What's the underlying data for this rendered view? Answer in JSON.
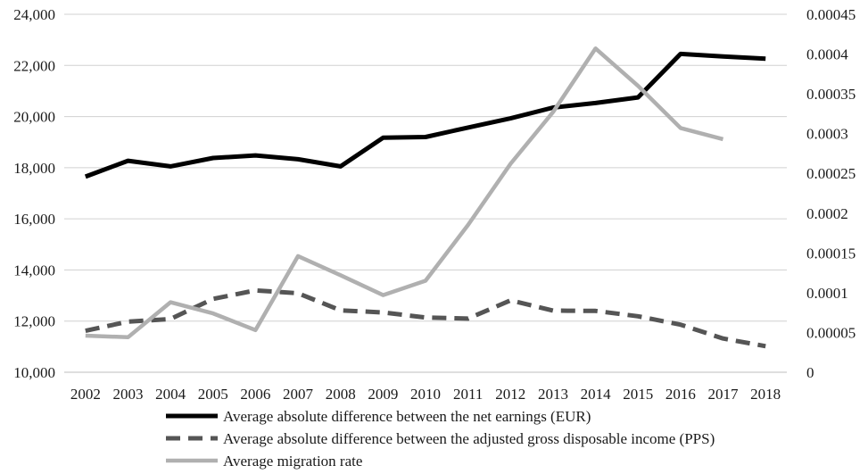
{
  "chart_data": {
    "type": "line",
    "title": "",
    "xlabel": "",
    "ylabel": "",
    "x": [
      "2002",
      "2003",
      "2004",
      "2005",
      "2006",
      "2007",
      "2008",
      "2009",
      "2010",
      "2011",
      "2012",
      "2013",
      "2014",
      "2015",
      "2016",
      "2017",
      "2018"
    ],
    "left_axis": {
      "ylim": [
        10000,
        24000
      ],
      "ticks": [
        10000,
        12000,
        14000,
        16000,
        18000,
        20000,
        22000,
        24000
      ],
      "tick_labels": [
        "10,000",
        "12,000",
        "14,000",
        "16,000",
        "18,000",
        "20,000",
        "22,000",
        "24,000"
      ]
    },
    "right_axis": {
      "ylim": [
        0,
        0.00045
      ],
      "ticks": [
        0,
        5e-05,
        0.0001,
        0.00015,
        0.0002,
        0.00025,
        0.0003,
        0.00035,
        0.0004,
        0.00045
      ],
      "tick_labels": [
        "0",
        "0.00005",
        "0.0001",
        "0.00015",
        "0.0002",
        "0.00025",
        "0.0003",
        "0.00035",
        "0.0004",
        "0.00045"
      ]
    },
    "grid": true,
    "legend_position": "bottom",
    "series": [
      {
        "name": "Average absolute difference between the net earnings (EUR)",
        "axis": "left",
        "style": "solid",
        "color": "#000000",
        "values": [
          17650,
          18270,
          18050,
          18380,
          18480,
          18330,
          18050,
          19170,
          19200,
          19570,
          19930,
          20350,
          20530,
          20750,
          22450,
          22350,
          22260
        ]
      },
      {
        "name": "Average absolute difference between the adjusted gross disposable income (PPS)",
        "axis": "left",
        "style": "dashed",
        "color": "#555555",
        "values": [
          11620,
          11980,
          12080,
          12870,
          13200,
          13090,
          12420,
          12340,
          12140,
          12100,
          12810,
          12410,
          12400,
          12190,
          11860,
          11320,
          11020
        ]
      },
      {
        "name": "Average migration rate",
        "axis": "right",
        "style": "solid",
        "color": "#b0b0b0",
        "values": [
          4.6e-05,
          4.4e-05,
          8.8e-05,
          7.4e-05,
          5.3e-05,
          0.000146,
          0.000122,
          9.7e-05,
          0.000115,
          0.000185,
          0.000262,
          0.000327,
          0.000407,
          0.00036,
          0.000307,
          0.000293,
          null
        ]
      }
    ]
  }
}
